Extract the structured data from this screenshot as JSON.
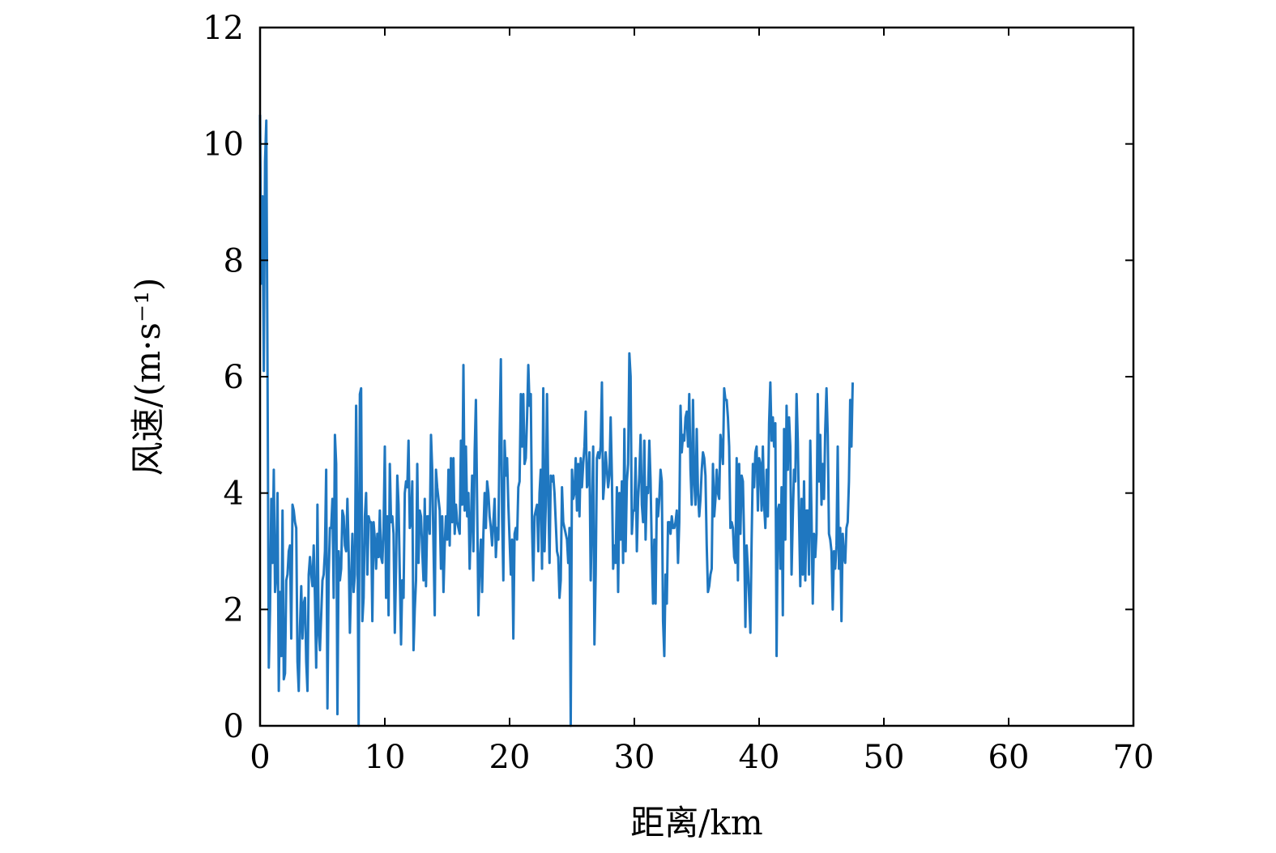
{
  "chart_data": {
    "type": "line",
    "title": "",
    "xlabel": "距离/km",
    "ylabel": "风速/(m·s⁻¹)",
    "xlim": [
      0,
      70
    ],
    "ylim": [
      0,
      12
    ],
    "xticks": [
      0,
      10,
      20,
      30,
      40,
      50,
      60,
      70
    ],
    "yticks": [
      0,
      2,
      4,
      6,
      8,
      10,
      12
    ],
    "grid": false,
    "legend": "none",
    "series": [
      {
        "color": "#1f77c0",
        "x_start": 0,
        "x_step": 0.1,
        "values": [
          10.5,
          7.6,
          9.1,
          6.1,
          9.7,
          10.4,
          6.0,
          1.0,
          2.0,
          3.9,
          2.8,
          4.4,
          2.3,
          2.6,
          4.0,
          0.6,
          2.3,
          1.2,
          3.7,
          0.8,
          0.9,
          2.5,
          2.6,
          3.0,
          3.1,
          1.5,
          3.8,
          3.7,
          3.5,
          3.4,
          1.1,
          0.6,
          1.7,
          2.4,
          1.5,
          2.1,
          2.2,
          1.1,
          0.6,
          2.6,
          2.9,
          2.6,
          2.4,
          3.1,
          2.2,
          1.0,
          3.8,
          1.6,
          1.3,
          1.9,
          2.5,
          2.6,
          3.0,
          4.4,
          0.3,
          2.6,
          3.4,
          3.4,
          3.9,
          2.2,
          5.0,
          4.5,
          0.2,
          3.0,
          2.5,
          2.7,
          3.7,
          3.6,
          3.1,
          3.0,
          3.9,
          3.0,
          1.6,
          2.5,
          3.3,
          2.3,
          2.6,
          5.5,
          3.5,
          0.0,
          5.7,
          5.8,
          1.8,
          2.2,
          3.6,
          4.0,
          2.6,
          3.6,
          3.5,
          3.5,
          1.8,
          3.5,
          3.2,
          2.7,
          3.3,
          2.9,
          3.7,
          2.9,
          2.8,
          3.4,
          4.8,
          2.2,
          3.6,
          1.9,
          4.5,
          3.5,
          3.6,
          3.3,
          1.6,
          2.7,
          4.3,
          3.8,
          2.6,
          1.4,
          2.5,
          2.2,
          4.0,
          4.2,
          4.1,
          4.9,
          3.4,
          3.5,
          4.2,
          1.3,
          2.0,
          2.5,
          4.5,
          2.8,
          3.7,
          3.6,
          3.0,
          2.5,
          3.9,
          2.4,
          3.6,
          3.6,
          3.3,
          5.0,
          4.4,
          3.1,
          1.9,
          4.4,
          4.1,
          3.9,
          3.7,
          2.7,
          3.6,
          2.3,
          3.1,
          3.6,
          3.2,
          4.4,
          3.1,
          4.6,
          3.5,
          4.6,
          3.3,
          3.8,
          3.5,
          3.4,
          3.3,
          4.9,
          3.8,
          6.2,
          3.7,
          4.8,
          3.6,
          4.0,
          2.7,
          3.5,
          4.3,
          3.0,
          4.7,
          5.6,
          3.8,
          1.9,
          2.8,
          3.2,
          2.3,
          3.3,
          4.0,
          3.4,
          4.2,
          4.0,
          3.6,
          3.4,
          3.1,
          3.5,
          3.9,
          2.9,
          3.4,
          3.2,
          5.0,
          6.3,
          3.6,
          2.5,
          4.9,
          4.3,
          4.6,
          3.8,
          3.2,
          2.6,
          3.2,
          1.5,
          3.3,
          3.4,
          3.2,
          4.1,
          4.2,
          5.7,
          4.8,
          5.7,
          4.5,
          4.6,
          5.3,
          6.2,
          5.5,
          5.7,
          3.4,
          2.5,
          3.6,
          3.7,
          3.8,
          3.0,
          4.0,
          4.4,
          2.7,
          5.8,
          3.0,
          3.8,
          5.7,
          4.0,
          2.8,
          4.3,
          4.2,
          4.3,
          4.0,
          3.5,
          3.0,
          2.9,
          2.2,
          2.5,
          4.1,
          3.5,
          3.4,
          3.3,
          3.2,
          2.8,
          3.4,
          0.0,
          4.4,
          3.9,
          4.0,
          4.6,
          3.7,
          4.5,
          3.6,
          4.6,
          4.1,
          4.5,
          4.8,
          5.4,
          4.1,
          4.2,
          4.7,
          2.5,
          3.6,
          4.8,
          1.4,
          2.6,
          4.6,
          4.7,
          4.6,
          4.8,
          5.9,
          3.9,
          4.2,
          4.7,
          4.4,
          4.1,
          4.3,
          5.3,
          4.3,
          2.7,
          3.1,
          2.8,
          4.1,
          2.3,
          4.0,
          3.2,
          4.2,
          2.8,
          5.1,
          3.0,
          4.2,
          4.5,
          6.4,
          6.0,
          3.3,
          3.7,
          3.7,
          4.6,
          3.0,
          3.9,
          4.3,
          5.0,
          3.8,
          3.5,
          4.9,
          3.2,
          4.1,
          4.0,
          4.9,
          4.2,
          3.0,
          2.1,
          3.2,
          2.1,
          3.9,
          3.6,
          3.9,
          4.4,
          4.2,
          1.8,
          1.2,
          2.6,
          2.1,
          3.5,
          3.5,
          3.3,
          3.6,
          3.4,
          3.4,
          3.5,
          3.7,
          2.8,
          3.5,
          5.5,
          4.7,
          5.0,
          4.9,
          5.3,
          5.4,
          4.8,
          5.7,
          4.4,
          3.8,
          5.6,
          4.2,
          3.8,
          5.1,
          4.0,
          3.6,
          3.9,
          4.4,
          4.7,
          4.6,
          4.3,
          3.1,
          2.3,
          2.4,
          2.6,
          2.7,
          4.5,
          3.6,
          3.9,
          4.4,
          4.0,
          3.9,
          5.0,
          4.8,
          4.5,
          5.8,
          5.6,
          5.6,
          5.3,
          4.8,
          3.4,
          3.5,
          3.4,
          2.9,
          2.8,
          4.6,
          2.5,
          4.5,
          3.3,
          4.3,
          4.2,
          3.2,
          1.7,
          3.1,
          2.7,
          2.2,
          1.6,
          3.2,
          4.5,
          4.1,
          4.7,
          4.8,
          3.7,
          4.6,
          4.5,
          3.7,
          4.8,
          3.8,
          3.4,
          4.4,
          3.6,
          5.2,
          5.9,
          4.9,
          5.3,
          4.8,
          5.2,
          1.2,
          3.7,
          3.8,
          2.7,
          4.1,
          1.9,
          5.1,
          3.2,
          5.5,
          4.4,
          5.3,
          4.8,
          2.6,
          3.6,
          4.4,
          4.2,
          5.7,
          4.9,
          3.6,
          2.4,
          3.9,
          2.6,
          4.2,
          2.5,
          3.7,
          3.7,
          2.6,
          4.9,
          3.6,
          2.1,
          3.3,
          2.9,
          3.3,
          5.7,
          4.2,
          5.0,
          3.8,
          4.5,
          3.9,
          5.1,
          5.8,
          5.0,
          3.3,
          3.2,
          3.0,
          2.0,
          3.0,
          2.7,
          3.1,
          4.8,
          2.7,
          3.4,
          1.8,
          3.3,
          2.9,
          2.8,
          3.4,
          3.5,
          4.2,
          5.6,
          4.8,
          5.9
        ]
      }
    ]
  }
}
